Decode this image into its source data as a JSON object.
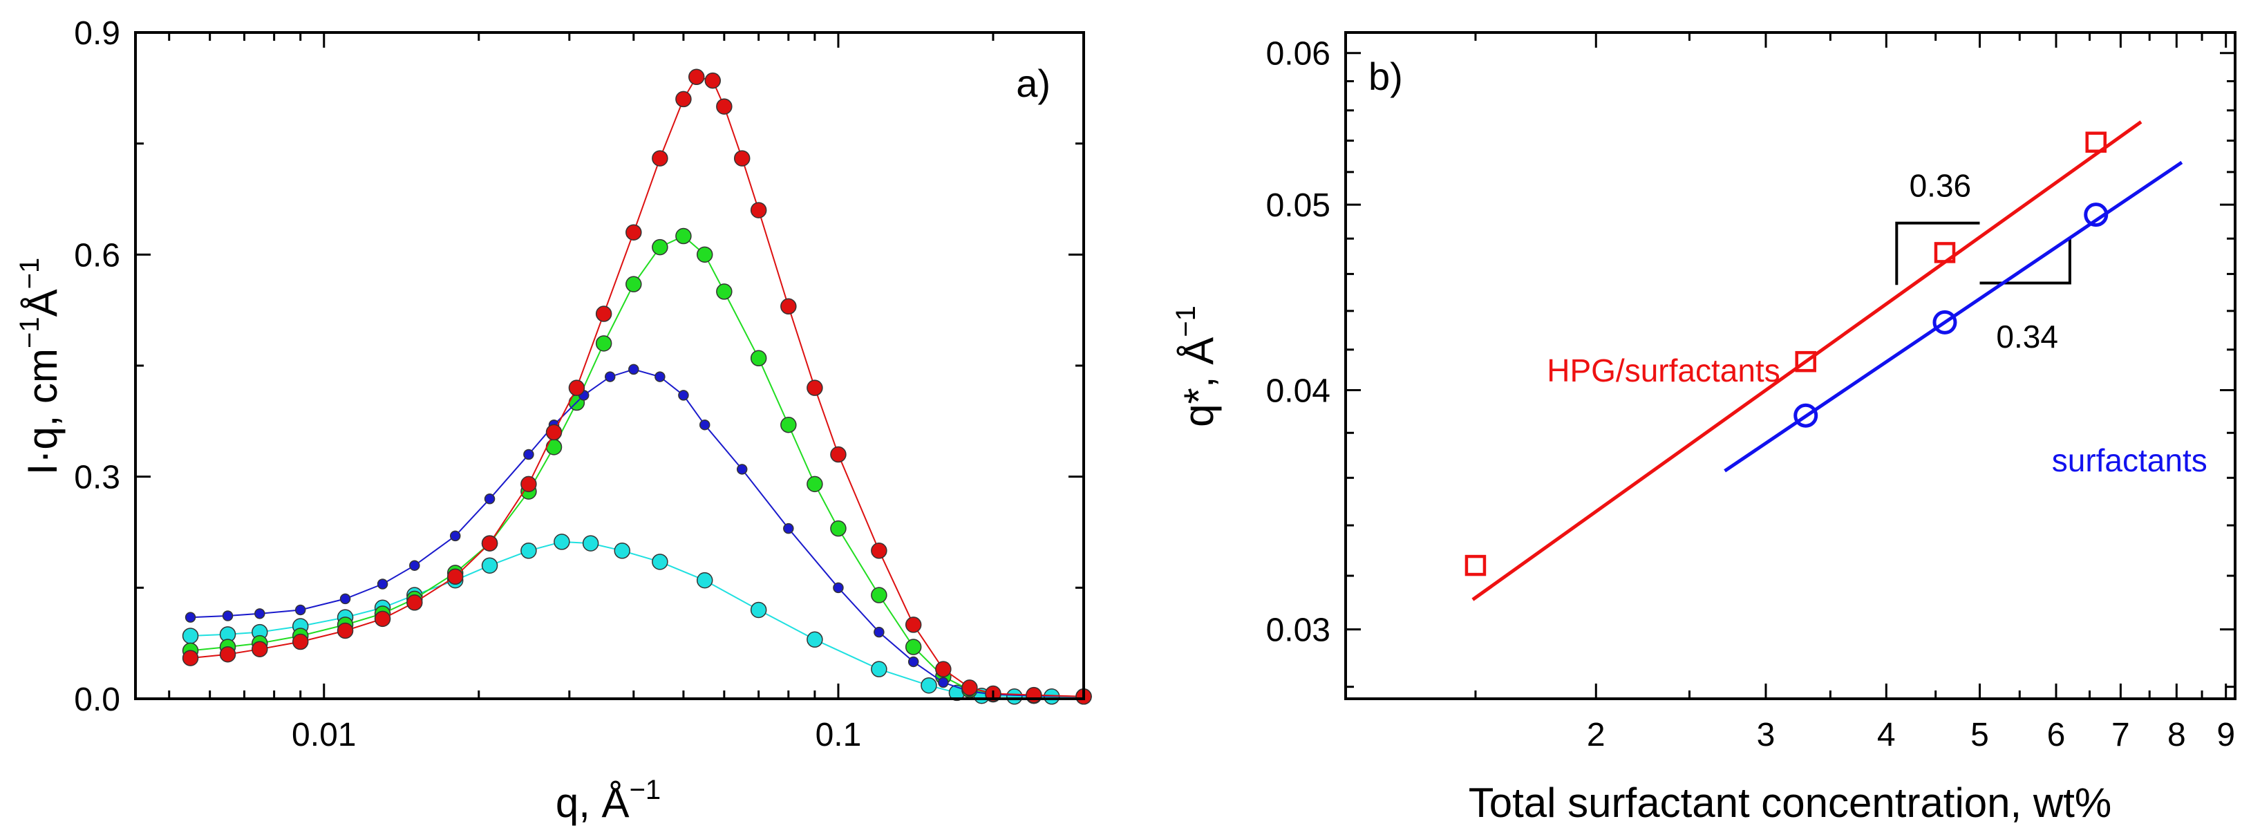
{
  "chart_data": [
    {
      "panel": "a)",
      "type": "scatter",
      "xscale": "log",
      "xlim": [
        0.0043,
        0.3
      ],
      "ylim": [
        0,
        0.9
      ],
      "xlabel": "q, Å",
      "xlabel_sup": "−1",
      "ylabel_base": "I·q, cm",
      "ylabel_sup1": "−1",
      "ylabel_mid": "Å",
      "ylabel_sup2": "−1",
      "xticks": [
        {
          "v": 0.01,
          "label": "0.01"
        },
        {
          "v": 0.1,
          "label": "0.1"
        }
      ],
      "yticks": [
        {
          "v": 0,
          "label": "0.0"
        },
        {
          "v": 0.3,
          "label": "0.3"
        },
        {
          "v": 0.6,
          "label": "0.6"
        },
        {
          "v": 0.9,
          "label": "0.9"
        }
      ],
      "series": [
        {
          "name": "cyan",
          "color": "#1fe0e0",
          "marker": "circle-large",
          "x": [
            0.0055,
            0.0065,
            0.0075,
            0.009,
            0.011,
            0.013,
            0.015,
            0.018,
            0.021,
            0.025,
            0.029,
            0.033,
            0.038,
            0.045,
            0.055,
            0.07,
            0.09,
            0.12,
            0.15,
            0.17,
            0.19,
            0.22,
            0.26,
            0.3
          ],
          "y": [
            0.085,
            0.087,
            0.09,
            0.098,
            0.11,
            0.123,
            0.14,
            0.16,
            0.18,
            0.2,
            0.212,
            0.21,
            0.2,
            0.185,
            0.16,
            0.12,
            0.08,
            0.04,
            0.018,
            0.008,
            0.004,
            0.003,
            0.003,
            0.003
          ]
        },
        {
          "name": "green",
          "color": "#22dd22",
          "marker": "circle-large",
          "x": [
            0.0055,
            0.0065,
            0.0075,
            0.009,
            0.011,
            0.013,
            0.015,
            0.018,
            0.021,
            0.025,
            0.028,
            0.031,
            0.035,
            0.04,
            0.045,
            0.05,
            0.055,
            0.06,
            0.07,
            0.08,
            0.09,
            0.1,
            0.12,
            0.14,
            0.16,
            0.18,
            0.2,
            0.24,
            0.3
          ],
          "y": [
            0.065,
            0.07,
            0.075,
            0.085,
            0.1,
            0.115,
            0.135,
            0.17,
            0.21,
            0.28,
            0.34,
            0.4,
            0.48,
            0.56,
            0.61,
            0.625,
            0.6,
            0.55,
            0.46,
            0.37,
            0.29,
            0.23,
            0.14,
            0.07,
            0.03,
            0.012,
            0.006,
            0.004,
            0.003
          ]
        },
        {
          "name": "blue",
          "color": "#1a1acc",
          "marker": "circle-small",
          "x": [
            0.0055,
            0.0065,
            0.0075,
            0.009,
            0.011,
            0.013,
            0.015,
            0.018,
            0.021,
            0.025,
            0.028,
            0.032,
            0.036,
            0.04,
            0.045,
            0.05,
            0.055,
            0.065,
            0.08,
            0.1,
            0.12,
            0.14,
            0.16,
            0.18,
            0.2,
            0.24,
            0.3
          ],
          "y": [
            0.11,
            0.112,
            0.115,
            0.12,
            0.135,
            0.155,
            0.18,
            0.22,
            0.27,
            0.33,
            0.37,
            0.41,
            0.435,
            0.445,
            0.435,
            0.41,
            0.37,
            0.31,
            0.23,
            0.15,
            0.09,
            0.05,
            0.022,
            0.01,
            0.006,
            0.004,
            0.003
          ]
        },
        {
          "name": "red",
          "color": "#dd1111",
          "marker": "circle-large",
          "x": [
            0.0055,
            0.0065,
            0.0075,
            0.009,
            0.011,
            0.013,
            0.015,
            0.018,
            0.021,
            0.025,
            0.028,
            0.031,
            0.035,
            0.04,
            0.045,
            0.05,
            0.053,
            0.057,
            0.06,
            0.065,
            0.07,
            0.08,
            0.09,
            0.1,
            0.12,
            0.14,
            0.16,
            0.18,
            0.2,
            0.24,
            0.3
          ],
          "y": [
            0.055,
            0.06,
            0.067,
            0.077,
            0.092,
            0.108,
            0.13,
            0.165,
            0.21,
            0.29,
            0.36,
            0.42,
            0.52,
            0.63,
            0.73,
            0.81,
            0.84,
            0.835,
            0.8,
            0.73,
            0.66,
            0.53,
            0.42,
            0.33,
            0.2,
            0.1,
            0.04,
            0.015,
            0.007,
            0.005,
            0.003
          ]
        }
      ]
    },
    {
      "panel": "b)",
      "type": "scatter",
      "xscale": "log",
      "yscale": "log",
      "xlim": [
        1.1,
        9.2
      ],
      "ylim": [
        0.0276,
        0.0615
      ],
      "xlabel": "Total surfactant concentration, wt%",
      "ylabel_base": "q*, Å",
      "ylabel_sup": "−1",
      "xticks": [
        {
          "v": 2,
          "label": "2"
        },
        {
          "v": 3,
          "label": "3"
        },
        {
          "v": 4,
          "label": "4"
        },
        {
          "v": 5,
          "label": "5"
        },
        {
          "v": 6,
          "label": "6"
        },
        {
          "v": 7,
          "label": "7"
        },
        {
          "v": 8,
          "label": "8"
        },
        {
          "v": 9,
          "label": "9"
        }
      ],
      "yticks": [
        {
          "v": 0.03,
          "label": "0.03"
        },
        {
          "v": 0.04,
          "label": "0.04"
        },
        {
          "v": 0.05,
          "label": "0.05"
        },
        {
          "v": 0.06,
          "label": "0.06"
        }
      ],
      "series": [
        {
          "name": "HPG/surfactants",
          "color": "#ee1111",
          "marker": "square",
          "x": [
            1.5,
            3.3,
            4.6,
            6.6
          ],
          "y": [
            0.0324,
            0.0414,
            0.0472,
            0.0539
          ],
          "fit": {
            "x": [
              1.49,
              7.35
            ],
            "slope": 0.36,
            "ref": [
              3.3,
              0.0414
            ]
          }
        },
        {
          "name": "surfactants",
          "color": "#1111ee",
          "marker": "circle",
          "x": [
            3.3,
            4.6,
            6.6
          ],
          "y": [
            0.0388,
            0.0434,
            0.0494
          ],
          "fit": {
            "x": [
              2.72,
              8.1
            ],
            "slope": 0.34,
            "ref": [
              4.6,
              0.0434
            ]
          }
        }
      ],
      "annotations": [
        {
          "text": "0.36",
          "x": 4.55,
          "y": 0.0512,
          "color": "#000000"
        },
        {
          "text": "0.34",
          "x": 5.6,
          "y": 0.0427,
          "color": "#000000"
        },
        {
          "text": "HPG/surfactants",
          "x": 2.35,
          "y": 0.041,
          "color": "#ee1111"
        },
        {
          "text": "surfactants",
          "x": 7.15,
          "y": 0.0368,
          "color": "#1111ee"
        }
      ],
      "slope_triangles": [
        {
          "x1": 4.1,
          "x2": 5.0,
          "y_low": 0.0454,
          "y_high": 0.0489
        },
        {
          "x1": 5.0,
          "x2": 6.2,
          "y_low": 0.0455,
          "y_high": 0.048
        }
      ]
    }
  ]
}
